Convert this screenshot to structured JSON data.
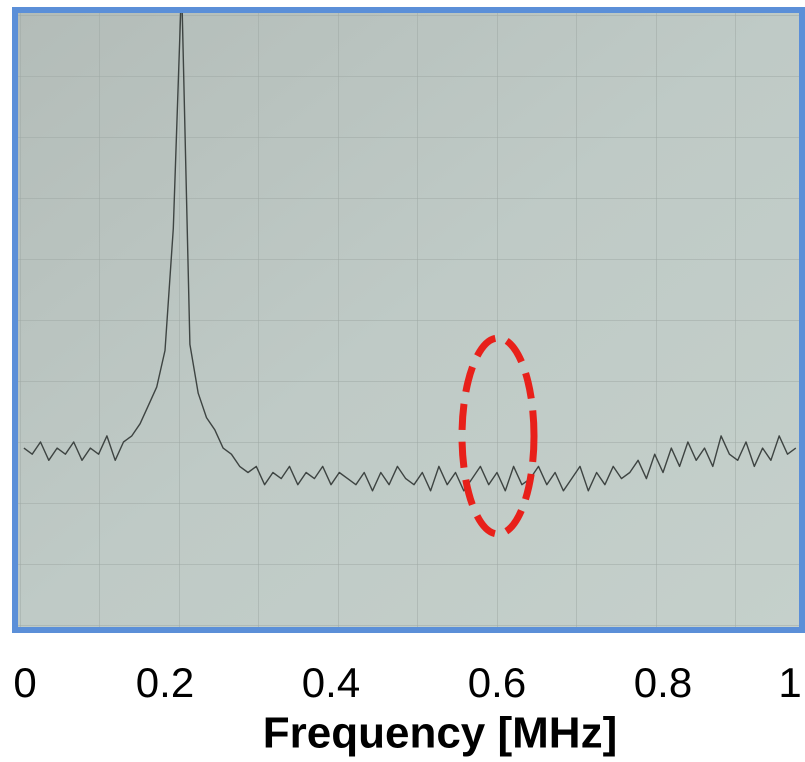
{
  "chart_data": {
    "type": "line",
    "xlabel": "Frequency [MHz]",
    "xlim": [
      0,
      1
    ],
    "xticks": [
      0,
      0.2,
      0.4,
      0.6,
      0.8,
      1
    ],
    "ylim": [
      0,
      10
    ],
    "series": [
      {
        "color": "#3e4442",
        "x": [
          0.03,
          0.04,
          0.05,
          0.06,
          0.07,
          0.08,
          0.09,
          0.1,
          0.11,
          0.12,
          0.13,
          0.14,
          0.15,
          0.16,
          0.17,
          0.18,
          0.19,
          0.2,
          0.21,
          0.22,
          0.23,
          0.24,
          0.25,
          0.26,
          0.27,
          0.28,
          0.29,
          0.3,
          0.31,
          0.32,
          0.33,
          0.34,
          0.35,
          0.36,
          0.37,
          0.38,
          0.39,
          0.4,
          0.41,
          0.42,
          0.43,
          0.44,
          0.45,
          0.46,
          0.47,
          0.48,
          0.49,
          0.5,
          0.51,
          0.52,
          0.53,
          0.54,
          0.55,
          0.56,
          0.57,
          0.58,
          0.59,
          0.6,
          0.61,
          0.62,
          0.63,
          0.64,
          0.65,
          0.66,
          0.67,
          0.68,
          0.69,
          0.7,
          0.71,
          0.72,
          0.73,
          0.74,
          0.75,
          0.76,
          0.77,
          0.78,
          0.79,
          0.8,
          0.81,
          0.82,
          0.83,
          0.84,
          0.85,
          0.86,
          0.87,
          0.88,
          0.89,
          0.9,
          0.91,
          0.92,
          0.93,
          0.94,
          0.95,
          0.96
        ],
        "values": [
          2.9,
          2.8,
          3.0,
          2.7,
          2.9,
          2.8,
          3.0,
          2.7,
          2.9,
          2.8,
          3.1,
          2.7,
          3.0,
          3.1,
          3.3,
          3.6,
          3.9,
          4.5,
          6.5,
          10.5,
          4.6,
          3.8,
          3.4,
          3.2,
          2.9,
          2.8,
          2.6,
          2.5,
          2.6,
          2.3,
          2.5,
          2.4,
          2.6,
          2.3,
          2.5,
          2.4,
          2.6,
          2.3,
          2.5,
          2.4,
          2.3,
          2.5,
          2.2,
          2.5,
          2.3,
          2.6,
          2.4,
          2.3,
          2.5,
          2.2,
          2.6,
          2.3,
          2.5,
          2.2,
          2.4,
          2.6,
          2.3,
          2.5,
          2.2,
          2.6,
          2.3,
          2.4,
          2.6,
          2.3,
          2.5,
          2.2,
          2.4,
          2.6,
          2.2,
          2.5,
          2.3,
          2.6,
          2.4,
          2.5,
          2.7,
          2.4,
          2.8,
          2.5,
          2.9,
          2.6,
          3.0,
          2.7,
          2.9,
          2.6,
          3.1,
          2.8,
          2.7,
          3.0,
          2.6,
          2.9,
          2.7,
          3.1,
          2.8,
          2.9
        ]
      }
    ]
  }
}
